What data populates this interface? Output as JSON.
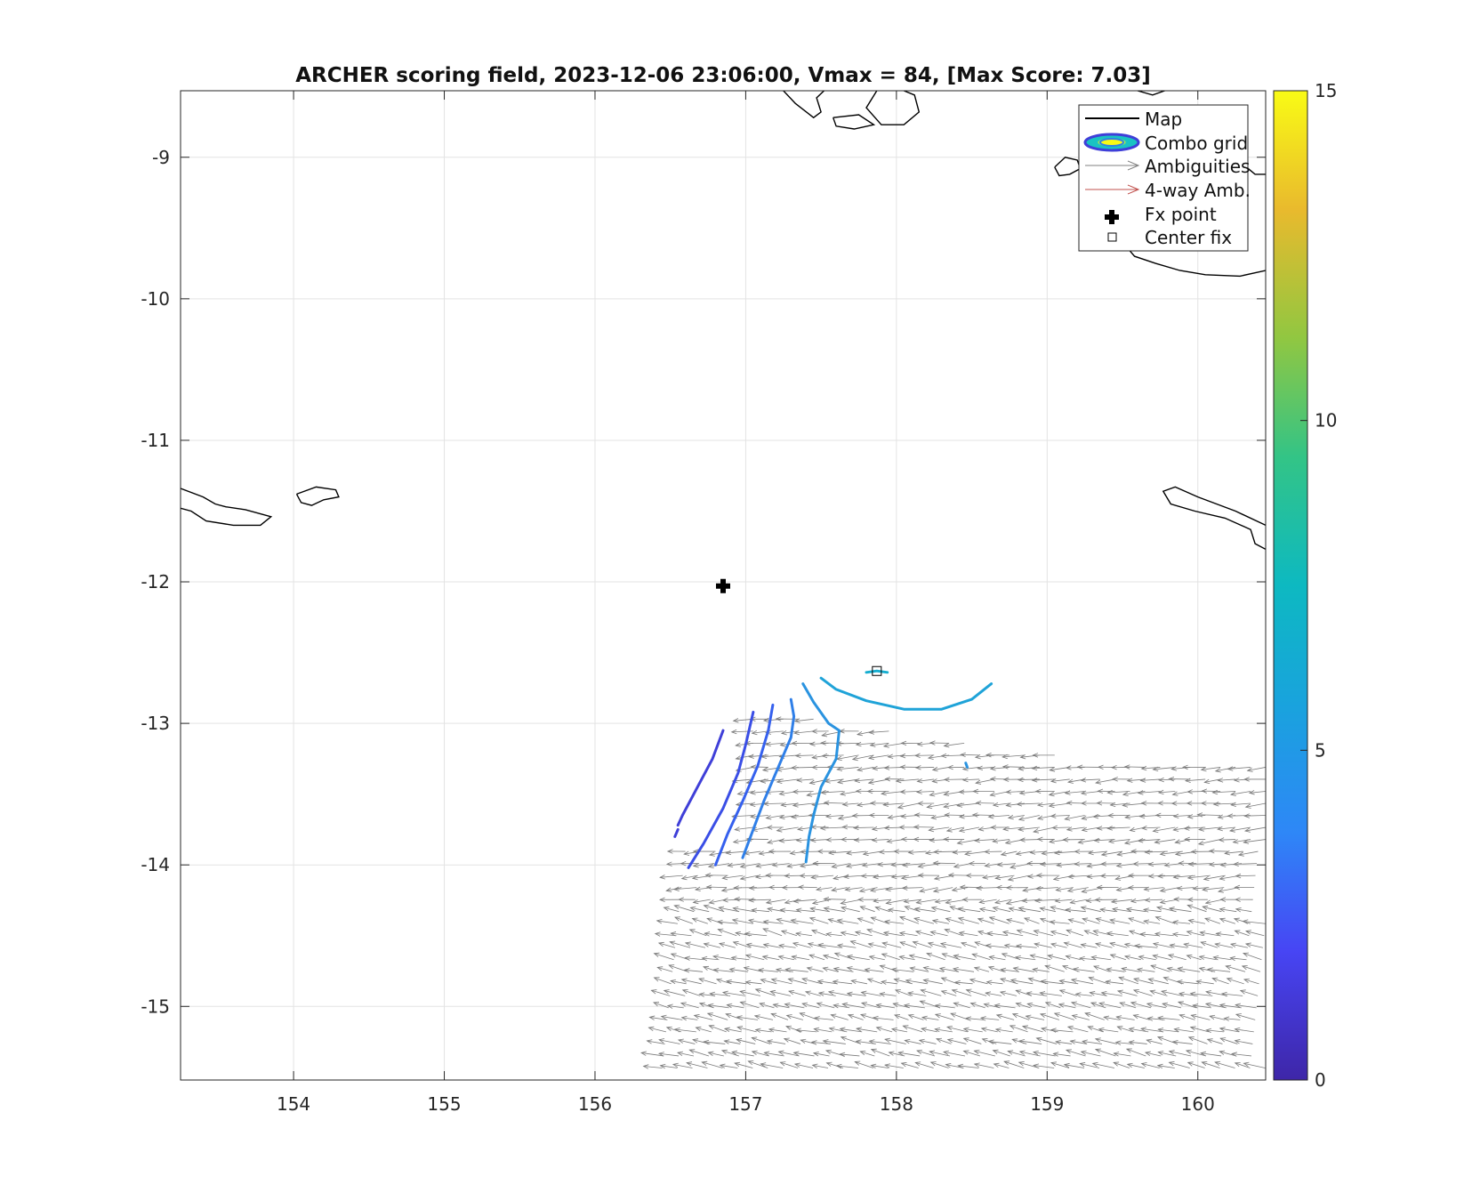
{
  "chart_data": {
    "type": "scatter",
    "title": "ARCHER scoring field, 2023-12-06 23:06:00, Vmax = 84, [Max Score: 7.03]",
    "xlabel": "",
    "ylabel": "",
    "xlim": [
      153.25,
      160.45
    ],
    "ylim": [
      -15.52,
      -8.53
    ],
    "x_ticks": [
      154,
      155,
      156,
      157,
      158,
      159,
      160
    ],
    "y_ticks": [
      -9,
      -10,
      -11,
      -12,
      -13,
      -14,
      -15
    ],
    "grid": true,
    "colorbar": {
      "min": 0,
      "max": 15,
      "ticks": [
        0,
        5,
        10,
        15
      ],
      "colormap": "parula"
    },
    "legend": {
      "placement": "top-right",
      "entries": [
        "Map",
        "Combo grid",
        "Ambiguities",
        "4-way Amb.",
        "Fx point",
        "Center fix"
      ]
    },
    "fx_point": {
      "x": 156.85,
      "y": -12.03
    },
    "center_fix": {
      "x": 157.87,
      "y": -12.63
    },
    "contours": [
      {
        "level": 2.5,
        "color": "#3f3fd8",
        "points": [
          [
            156.85,
            -13.05
          ],
          [
            156.78,
            -13.25
          ],
          [
            156.68,
            -13.45
          ],
          [
            156.58,
            -13.65
          ],
          [
            156.55,
            -13.72
          ]
        ]
      },
      {
        "level": 2.5,
        "color": "#3f3fd8",
        "points": [
          [
            156.55,
            -13.75
          ],
          [
            156.53,
            -13.8
          ]
        ]
      },
      {
        "level": 3.0,
        "color": "#3a4ee6",
        "points": [
          [
            157.05,
            -12.92
          ],
          [
            157.0,
            -13.15
          ],
          [
            156.95,
            -13.35
          ],
          [
            156.85,
            -13.6
          ],
          [
            156.72,
            -13.85
          ],
          [
            156.62,
            -14.02
          ]
        ]
      },
      {
        "level": 3.5,
        "color": "#3560ee",
        "points": [
          [
            157.18,
            -12.87
          ],
          [
            157.15,
            -13.05
          ],
          [
            157.08,
            -13.3
          ],
          [
            156.98,
            -13.55
          ],
          [
            156.88,
            -13.78
          ],
          [
            156.8,
            -14.0
          ]
        ]
      },
      {
        "level": 4.0,
        "color": "#2f7fe8",
        "points": [
          [
            157.3,
            -12.83
          ],
          [
            157.32,
            -12.95
          ],
          [
            157.3,
            -13.1
          ],
          [
            157.22,
            -13.3
          ],
          [
            157.12,
            -13.55
          ],
          [
            157.05,
            -13.75
          ],
          [
            156.98,
            -13.95
          ]
        ]
      },
      {
        "level": 4.5,
        "color": "#2a93e0",
        "points": [
          [
            157.38,
            -12.72
          ],
          [
            157.45,
            -12.85
          ],
          [
            157.55,
            -13.0
          ],
          [
            157.62,
            -13.05
          ],
          [
            157.6,
            -13.25
          ],
          [
            157.5,
            -13.45
          ],
          [
            157.45,
            -13.65
          ],
          [
            157.42,
            -13.8
          ],
          [
            157.4,
            -13.98
          ]
        ]
      },
      {
        "level": 5.5,
        "color": "#1fa3d8",
        "points": [
          [
            157.5,
            -12.68
          ],
          [
            157.6,
            -12.76
          ],
          [
            157.8,
            -12.84
          ],
          [
            158.05,
            -12.9
          ],
          [
            158.3,
            -12.9
          ],
          [
            158.5,
            -12.83
          ],
          [
            158.63,
            -12.72
          ]
        ]
      },
      {
        "level": 6.0,
        "color": "#17aed0",
        "points": [
          [
            157.8,
            -12.64
          ],
          [
            157.87,
            -12.63
          ],
          [
            157.94,
            -12.64
          ]
        ]
      },
      {
        "level": 5.0,
        "color": "#2a93e0",
        "points": [
          [
            158.46,
            -13.28
          ],
          [
            158.47,
            -13.31
          ]
        ]
      }
    ],
    "ambiguities": {
      "description": "gray wind-vector ambiguity field",
      "extent": {
        "lon_min": 156.45,
        "lon_max": 160.45,
        "lat_min": -15.52,
        "lat_max": -12.8
      },
      "dominant_direction": "toward west"
    }
  },
  "map_outlines": [
    {
      "name": "island-west",
      "points": [
        [
          153.25,
          -11.34
        ],
        [
          153.4,
          -11.4
        ],
        [
          153.48,
          -11.45
        ],
        [
          153.55,
          -11.47
        ],
        [
          153.68,
          -11.49
        ],
        [
          153.85,
          -11.54
        ],
        [
          153.78,
          -11.6
        ],
        [
          153.6,
          -11.6
        ],
        [
          153.42,
          -11.57
        ],
        [
          153.32,
          -11.5
        ],
        [
          153.25,
          -11.48
        ]
      ]
    },
    {
      "name": "island-small-west",
      "points": [
        [
          154.02,
          -11.38
        ],
        [
          154.15,
          -11.33
        ],
        [
          154.28,
          -11.35
        ],
        [
          154.3,
          -11.4
        ],
        [
          154.2,
          -11.42
        ],
        [
          154.12,
          -11.46
        ],
        [
          154.05,
          -11.44
        ],
        [
          154.02,
          -11.38
        ]
      ]
    },
    {
      "name": "island-north-1",
      "points": [
        [
          157.25,
          -8.53
        ],
        [
          157.33,
          -8.62
        ],
        [
          157.45,
          -8.72
        ],
        [
          157.5,
          -8.68
        ],
        [
          157.47,
          -8.58
        ],
        [
          157.52,
          -8.53
        ]
      ]
    },
    {
      "name": "island-north-2",
      "points": [
        [
          157.58,
          -8.72
        ],
        [
          157.75,
          -8.7
        ],
        [
          157.85,
          -8.77
        ],
        [
          157.72,
          -8.8
        ],
        [
          157.6,
          -8.78
        ],
        [
          157.58,
          -8.72
        ]
      ]
    },
    {
      "name": "island-north-3",
      "points": [
        [
          157.87,
          -8.53
        ],
        [
          157.8,
          -8.65
        ],
        [
          157.9,
          -8.77
        ],
        [
          158.05,
          -8.77
        ],
        [
          158.15,
          -8.68
        ],
        [
          158.12,
          -8.56
        ],
        [
          158.05,
          -8.53
        ]
      ]
    },
    {
      "name": "island-east-small",
      "points": [
        [
          159.05,
          -9.07
        ],
        [
          159.12,
          -9.0
        ],
        [
          159.2,
          -9.02
        ],
        [
          159.22,
          -9.08
        ],
        [
          159.15,
          -9.12
        ],
        [
          159.08,
          -9.13
        ],
        [
          159.05,
          -9.07
        ]
      ]
    },
    {
      "name": "coast-east-north",
      "points": [
        [
          160.45,
          -9.8
        ],
        [
          160.28,
          -9.84
        ],
        [
          160.05,
          -9.83
        ],
        [
          159.88,
          -9.8
        ],
        [
          159.72,
          -9.75
        ],
        [
          159.58,
          -9.7
        ],
        [
          159.5,
          -9.6
        ],
        [
          159.6,
          -9.52
        ],
        [
          159.5,
          -9.38
        ],
        [
          159.35,
          -9.3
        ],
        [
          159.38,
          -9.18
        ]
      ]
    },
    {
      "name": "coast-east-corner",
      "points": [
        [
          160.3,
          -9.05
        ],
        [
          160.38,
          -9.12
        ],
        [
          160.45,
          -9.12
        ]
      ]
    },
    {
      "name": "island-north-right",
      "points": [
        [
          159.6,
          -8.53
        ],
        [
          159.7,
          -8.56
        ],
        [
          159.78,
          -8.53
        ]
      ]
    },
    {
      "name": "island-east-south",
      "points": [
        [
          160.45,
          -11.6
        ],
        [
          160.25,
          -11.5
        ],
        [
          160.0,
          -11.4
        ],
        [
          159.85,
          -11.33
        ],
        [
          159.77,
          -11.36
        ],
        [
          159.82,
          -11.45
        ],
        [
          159.98,
          -11.5
        ],
        [
          160.18,
          -11.55
        ],
        [
          160.35,
          -11.63
        ],
        [
          160.38,
          -11.73
        ],
        [
          160.45,
          -11.77
        ]
      ]
    }
  ]
}
